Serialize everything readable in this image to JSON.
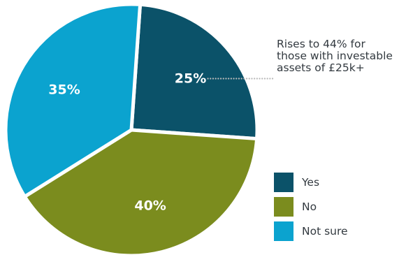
{
  "chart_data": {
    "type": "pie",
    "slices": [
      {
        "name": "Yes",
        "value": 25,
        "label": "25%",
        "color": "#0b5269"
      },
      {
        "name": "No",
        "value": 40,
        "label": "40%",
        "color": "#7b8c1e"
      },
      {
        "name": "Not sure",
        "value": 35,
        "label": "35%",
        "color": "#0ba3cf"
      }
    ],
    "start_angle_deg": 4,
    "annotation": {
      "target": "Yes",
      "lines": [
        "Rises to 44% for",
        "those with investable",
        "assets of £25k+"
      ]
    },
    "legend": {
      "placement": "bottom-right",
      "items": [
        "Yes",
        "No",
        "Not sure"
      ]
    }
  }
}
